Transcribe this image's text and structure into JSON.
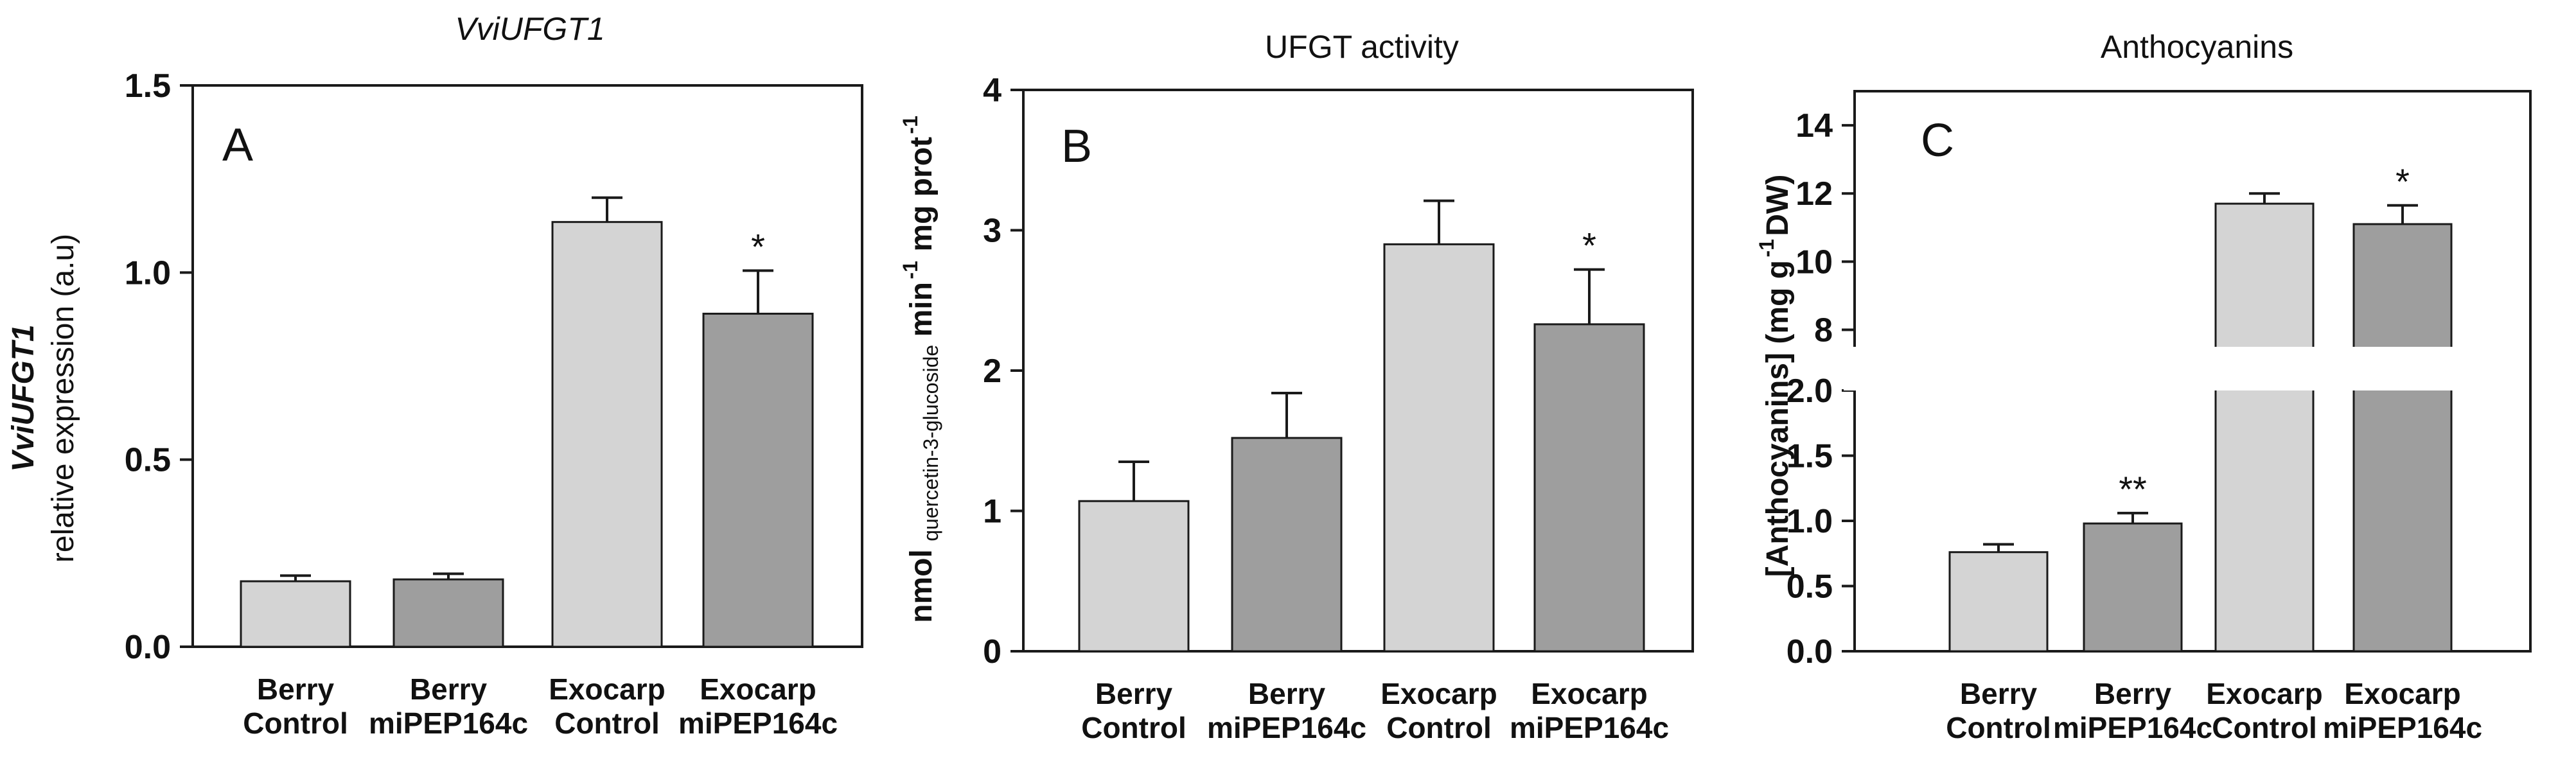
{
  "colors": {
    "light_bar": "#d4d4d4",
    "dark_bar": "#9e9e9e",
    "axis": "#1a1a1a"
  },
  "chart_data": [
    {
      "type": "bar",
      "title": "VviUFGT1",
      "panel_letter": "A",
      "ylabel": "VviUFGT1",
      "ylabel_line2": "relative expression (a.u)",
      "categories": [
        [
          "Berry",
          "Control"
        ],
        [
          "Berry",
          "miPEP164c"
        ],
        [
          "Exocarp",
          "Control"
        ],
        [
          "Exocarp",
          "miPEP164c"
        ]
      ],
      "values": [
        0.175,
        0.18,
        1.135,
        0.89
      ],
      "errors": [
        0.015,
        0.015,
        0.065,
        0.115
      ],
      "significance": [
        "",
        "",
        "",
        "*"
      ],
      "ylim": [
        0,
        1.5
      ],
      "yticks": [
        "0.0",
        "0.5",
        "1.0",
        "1.5"
      ]
    },
    {
      "type": "bar",
      "title": "UFGT activity",
      "panel_letter": "B",
      "ylabel": "nmol quercetin-3-glucoside min-1 mg prot-1",
      "ylabel_parts": {
        "a": "nmol",
        "b": "quercetin-3-glucoside",
        "c": "min",
        "d": "-1",
        "e": "mg prot",
        "f": "-1"
      },
      "categories": [
        [
          "Berry",
          "Control"
        ],
        [
          "Berry",
          "miPEP164c"
        ],
        [
          "Exocarp",
          "Control"
        ],
        [
          "Exocarp",
          "miPEP164c"
        ]
      ],
      "values": [
        1.07,
        1.52,
        2.9,
        2.33
      ],
      "errors": [
        0.28,
        0.32,
        0.31,
        0.39
      ],
      "significance": [
        "",
        "",
        "",
        "*"
      ],
      "ylim": [
        0,
        4
      ],
      "yticks": [
        "0",
        "1",
        "2",
        "3",
        "4"
      ]
    },
    {
      "type": "bar",
      "title": "Anthocyanins",
      "panel_letter": "C",
      "ylabel": "[Anthocyanins] (mg g-1 DW)",
      "ylabel_parts": {
        "a": "[Anthocyanins] (mg g",
        "b": "-1",
        "c": " DW)"
      },
      "categories": [
        [
          "Berry",
          "Control"
        ],
        [
          "Berry",
          "miPEP164c"
        ],
        [
          "Exocarp",
          "Control"
        ],
        [
          "Exocarp",
          "miPEP164c"
        ]
      ],
      "values": [
        0.76,
        0.98,
        11.7,
        11.1
      ],
      "errors": [
        0.06,
        0.08,
        0.3,
        0.55
      ],
      "significance": [
        "",
        "**",
        "",
        "*"
      ],
      "broken_axis": true,
      "ylim_lower": [
        0,
        2
      ],
      "ylim_upper": [
        7.5,
        15
      ],
      "yticks_lower": [
        "0.0",
        "0.5",
        "1.0",
        "1.5",
        "2.0"
      ],
      "yticks_upper": [
        "8",
        "10",
        "12",
        "14"
      ]
    }
  ]
}
